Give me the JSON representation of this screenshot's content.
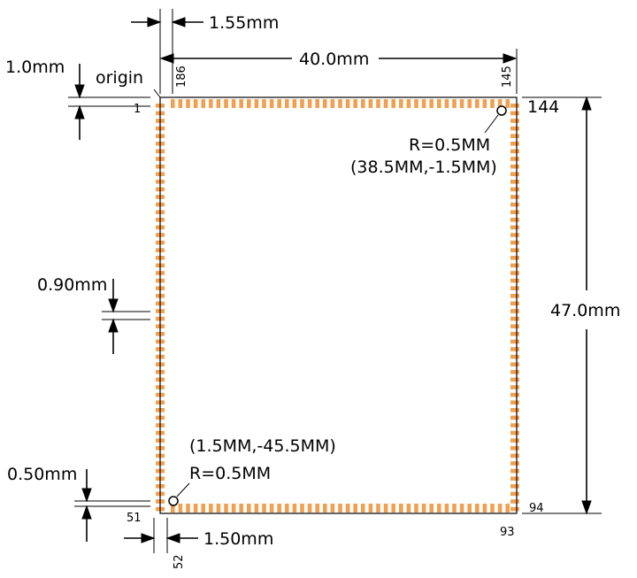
{
  "labels": {
    "dim_top_offset": "1.55mm",
    "dim_width": "40.0mm",
    "dim_height": "47.0mm",
    "dim_origin_offset": "1.0mm",
    "origin": "origin",
    "pin_pitch": "0.90mm",
    "pad_width": "0.50mm",
    "dim_bottom_offset": "1.50mm"
  },
  "pins": {
    "p1": "1",
    "p51": "51",
    "p52": "52",
    "p93": "93",
    "p94": "94",
    "p144": "144",
    "p145": "145",
    "p186": "186"
  },
  "fiducials": {
    "top_right": {
      "radius": "R=0.5MM",
      "coord": "(38.5MM,-1.5MM)"
    },
    "bottom_left": {
      "coord": "(1.5MM,-45.5MM)",
      "radius": "R=0.5MM"
    }
  },
  "colors": {
    "pad": "#f0a050",
    "outline": "#000000"
  }
}
